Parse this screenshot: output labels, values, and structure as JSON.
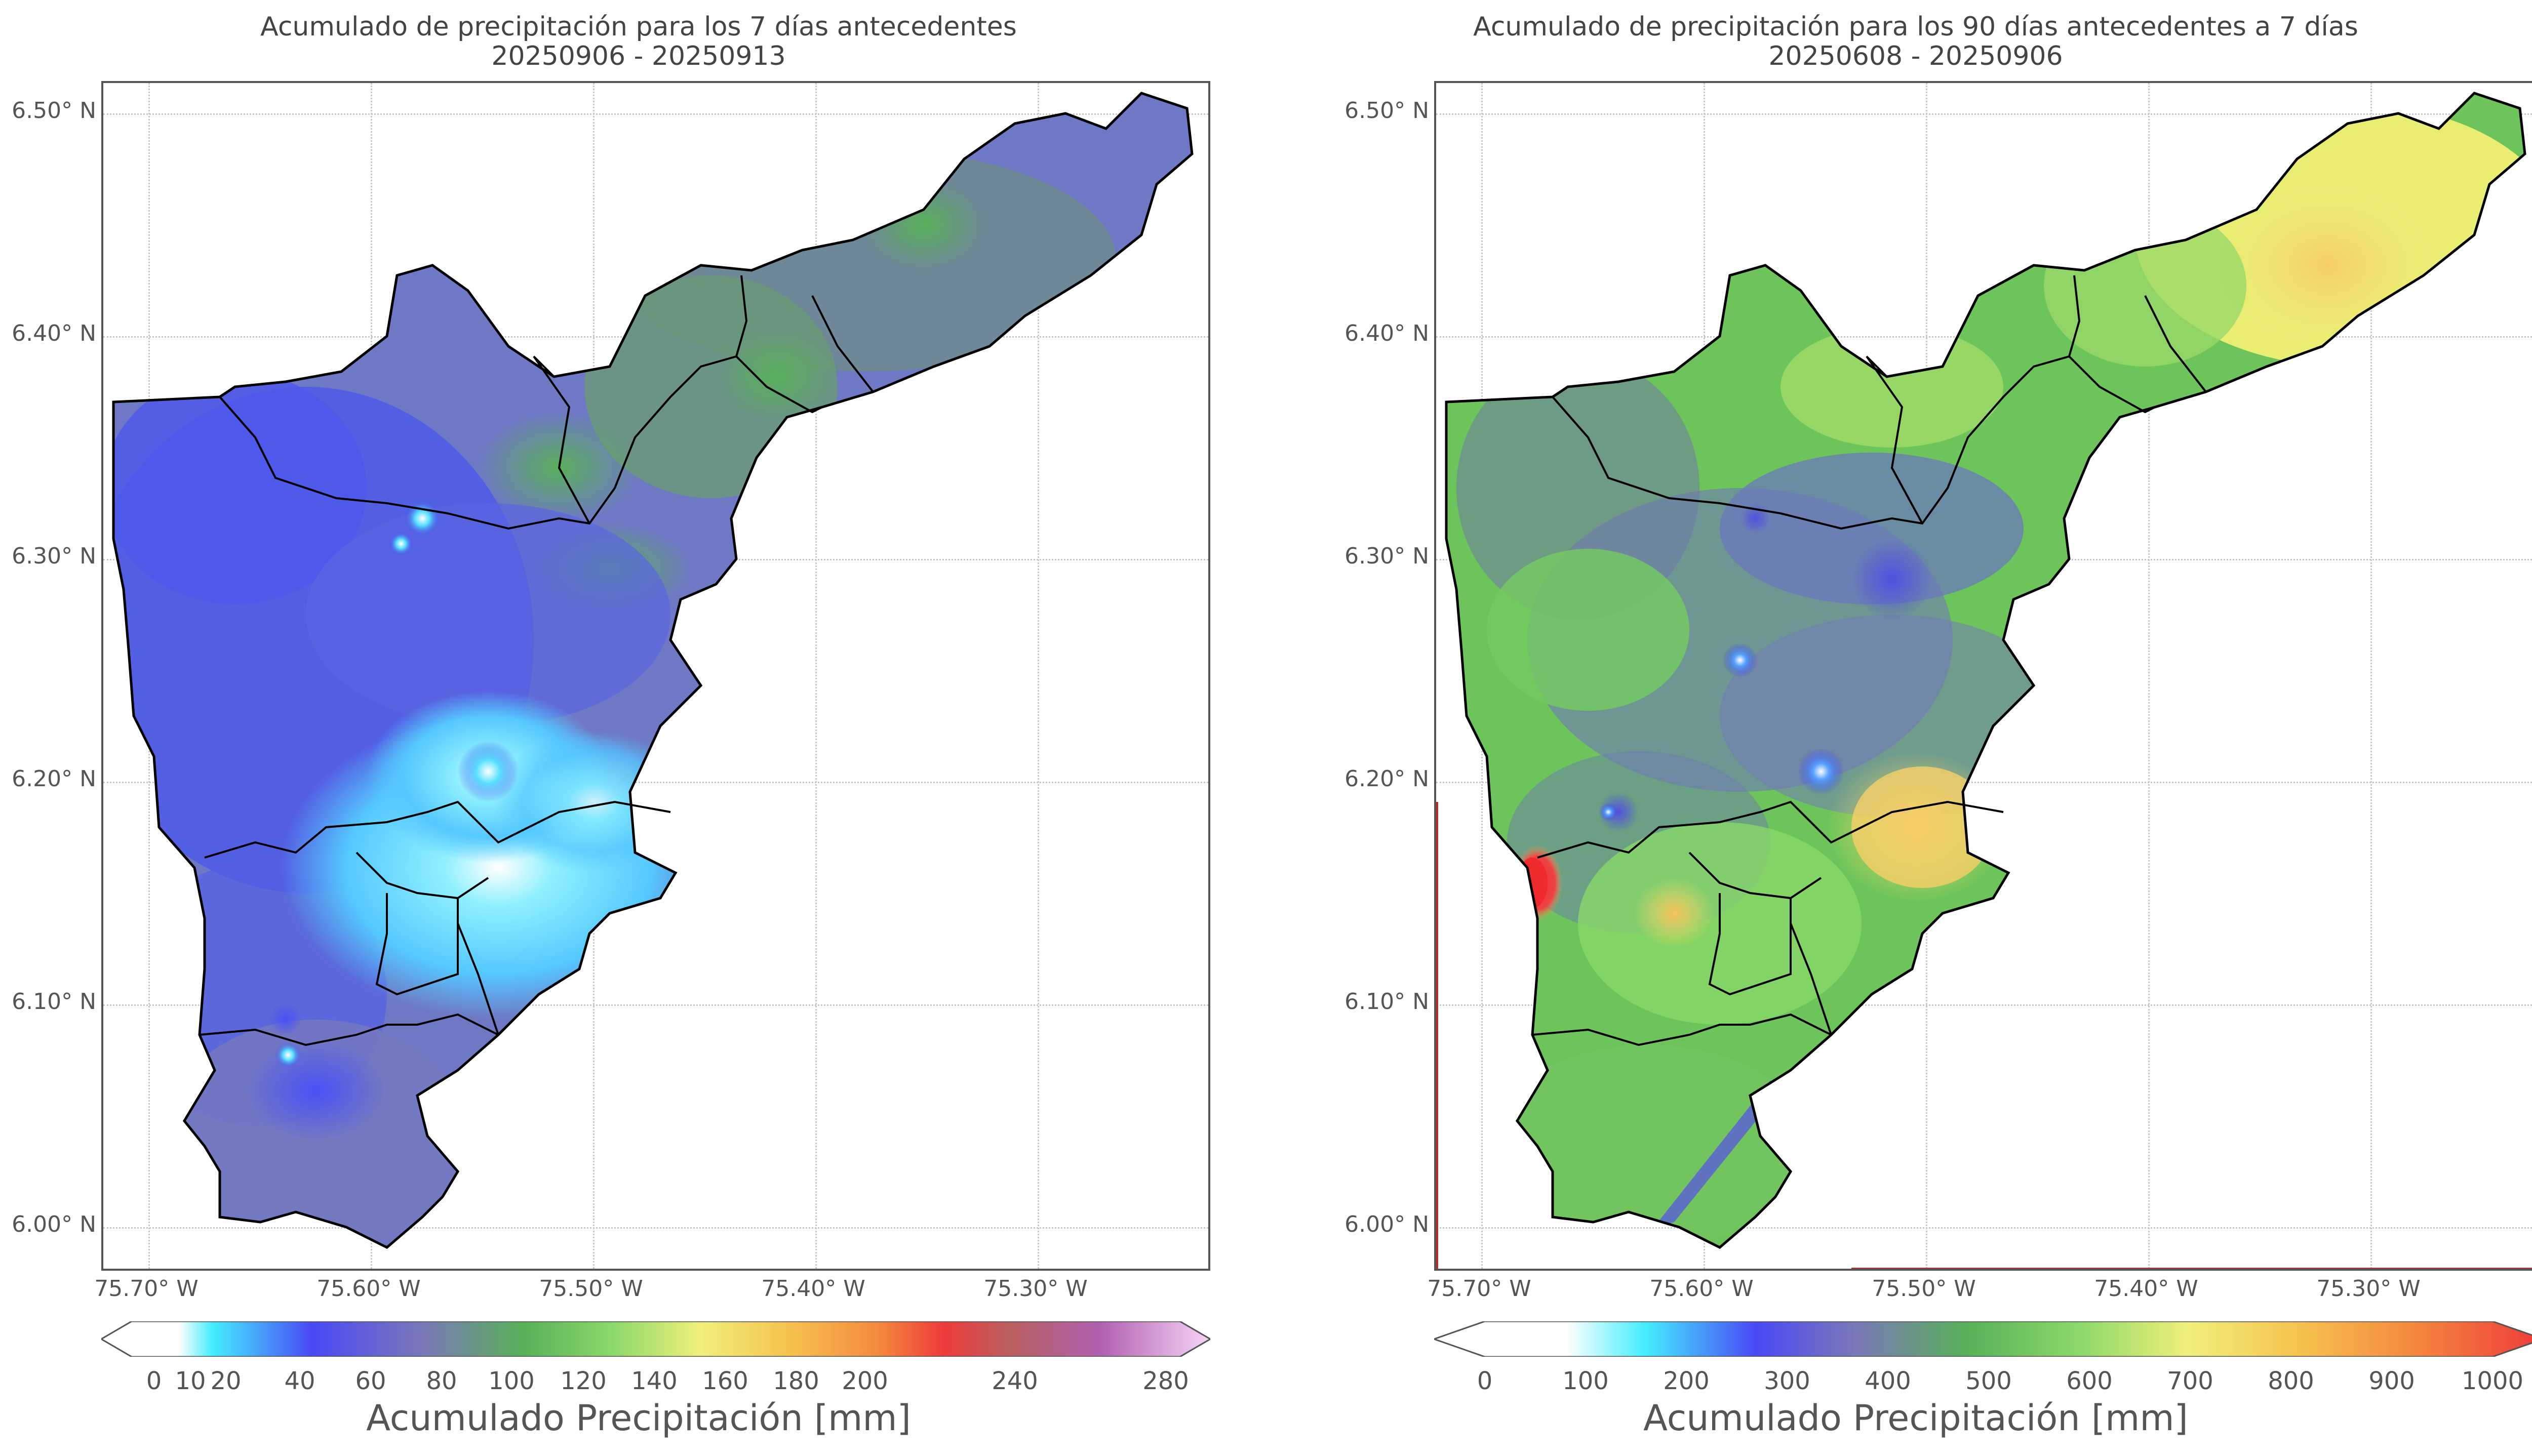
{
  "left": {
    "title_line1": "Acumulado de precipitación para los 7 días antecedentes",
    "title_line2": "20250906 - 20250913",
    "y_ticks": [
      "6.50° N",
      "6.40° N",
      "6.30° N",
      "6.20° N",
      "6.10° N",
      "6.00° N"
    ],
    "x_ticks": [
      "75.70° W",
      "75.60° W",
      "75.50° W",
      "75.40° W",
      "75.30° W"
    ],
    "colorbar_ticks": [
      "0",
      "10",
      "20",
      "40",
      "60",
      "80",
      "100",
      "120",
      "140",
      "160",
      "180",
      "200",
      "240",
      "280"
    ],
    "colorbar_label": "Acumulado Precipitación [mm]"
  },
  "right": {
    "title_line1": "Acumulado de precipitación para los 90 días antecedentes a 7 días",
    "title_line2": "20250608 - 20250906",
    "y_ticks": [
      "6.50° N",
      "6.40° N",
      "6.30° N",
      "6.20° N",
      "6.10° N",
      "6.00° N"
    ],
    "x_ticks": [
      "75.70° W",
      "75.60° W",
      "75.50° W",
      "75.40° W",
      "75.30° W"
    ],
    "colorbar_ticks": [
      "0",
      "100",
      "200",
      "300",
      "400",
      "500",
      "600",
      "700",
      "800",
      "900",
      "1000"
    ],
    "colorbar_label": "Acumulado Precipitación [mm]"
  },
  "colors": {
    "left_map_base": "#6f79c8",
    "left_map_blue": "#4a55ee",
    "left_map_cyan": "#55d8ff",
    "left_map_green": "#5fae6a",
    "right_map_green": "#6cc85a",
    "right_map_yellow": "#ecec6a",
    "right_map_orange": "#f6c25a",
    "right_map_red": "#ee3030",
    "right_map_blue": "#5556d8"
  }
}
